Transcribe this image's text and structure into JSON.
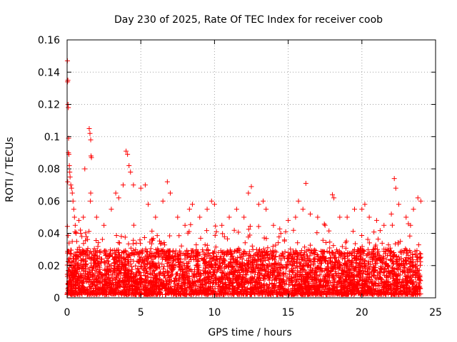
{
  "chart_data": {
    "type": "scatter",
    "title": "Day 230 of 2025, Rate Of TEC Index for receiver coob",
    "xlabel": "GPS time / hours",
    "ylabel": "ROTI / TECUs",
    "xlim": [
      0,
      25
    ],
    "ylim": [
      0,
      0.16
    ],
    "xticks": [
      0,
      5,
      10,
      15,
      20,
      25
    ],
    "yticks": [
      0,
      0.02,
      0.04,
      0.06,
      0.08,
      0.1,
      0.12,
      0.14,
      0.16
    ],
    "xtick_labels": [
      "0",
      "5",
      "10",
      "15",
      "20",
      "25"
    ],
    "ytick_labels": [
      "0",
      "0.02",
      "0.04",
      "0.06",
      "0.08",
      "0.1",
      "0.12",
      "0.14",
      "0.16"
    ],
    "grid": true,
    "marker": "plus",
    "marker_color": "#ff0000",
    "series": [
      {
        "x": [
          0.02,
          0.05,
          0.08,
          0.1,
          0.12,
          0.15,
          0.18,
          0.2,
          0.25,
          0.3,
          0.35,
          0.4,
          0.45,
          0.5,
          0.55,
          0.6,
          0.65,
          0.7,
          0.8,
          0.9,
          1.0,
          1.1,
          1.2,
          1.5,
          1.55,
          1.6,
          1.62,
          1.65,
          1.6,
          1.58,
          2.0,
          2.5,
          3.0,
          3.3,
          3.5,
          3.8,
          4.0,
          4.1,
          4.2,
          4.3,
          4.5,
          5.0,
          5.3,
          5.5,
          6.0,
          6.5,
          6.8,
          7.0,
          7.5,
          8.0,
          8.3,
          8.5,
          9.0,
          9.5,
          9.8,
          10.0,
          10.5,
          11.0,
          11.5,
          12.0,
          12.3,
          12.5,
          13.0,
          13.3,
          13.5,
          14.0,
          14.5,
          15.0,
          15.5,
          15.7,
          16.0,
          16.2,
          16.5,
          17.0,
          17.5,
          18.0,
          18.1,
          18.5,
          19.0,
          19.5,
          20.0,
          20.2,
          20.5,
          21.0,
          21.5,
          22.0,
          22.2,
          22.3,
          22.5,
          23.0,
          23.3,
          23.5,
          23.8,
          24.0,
          0.03,
          0.06,
          0.09,
          0.04
        ],
        "y": [
          0.147,
          0.135,
          0.118,
          0.099,
          0.089,
          0.082,
          0.078,
          0.075,
          0.07,
          0.068,
          0.065,
          0.06,
          0.055,
          0.05,
          0.045,
          0.04,
          0.035,
          0.03,
          0.048,
          0.042,
          0.038,
          0.05,
          0.08,
          0.105,
          0.102,
          0.098,
          0.088,
          0.087,
          0.065,
          0.06,
          0.05,
          0.045,
          0.055,
          0.065,
          0.062,
          0.07,
          0.091,
          0.089,
          0.082,
          0.078,
          0.07,
          0.068,
          0.07,
          0.058,
          0.05,
          0.06,
          0.072,
          0.065,
          0.05,
          0.045,
          0.055,
          0.058,
          0.05,
          0.055,
          0.06,
          0.058,
          0.045,
          0.05,
          0.055,
          0.05,
          0.065,
          0.069,
          0.058,
          0.06,
          0.055,
          0.045,
          0.04,
          0.048,
          0.05,
          0.06,
          0.055,
          0.071,
          0.052,
          0.05,
          0.045,
          0.064,
          0.062,
          0.05,
          0.05,
          0.055,
          0.055,
          0.058,
          0.05,
          0.048,
          0.045,
          0.052,
          0.074,
          0.068,
          0.058,
          0.05,
          0.045,
          0.055,
          0.062,
          0.06,
          0.134,
          0.12,
          0.09,
          0.072
        ]
      }
    ],
    "dense_band": {
      "x_range": [
        0,
        24
      ],
      "y_range": [
        0.002,
        0.03
      ],
      "description_count": 4500
    }
  }
}
